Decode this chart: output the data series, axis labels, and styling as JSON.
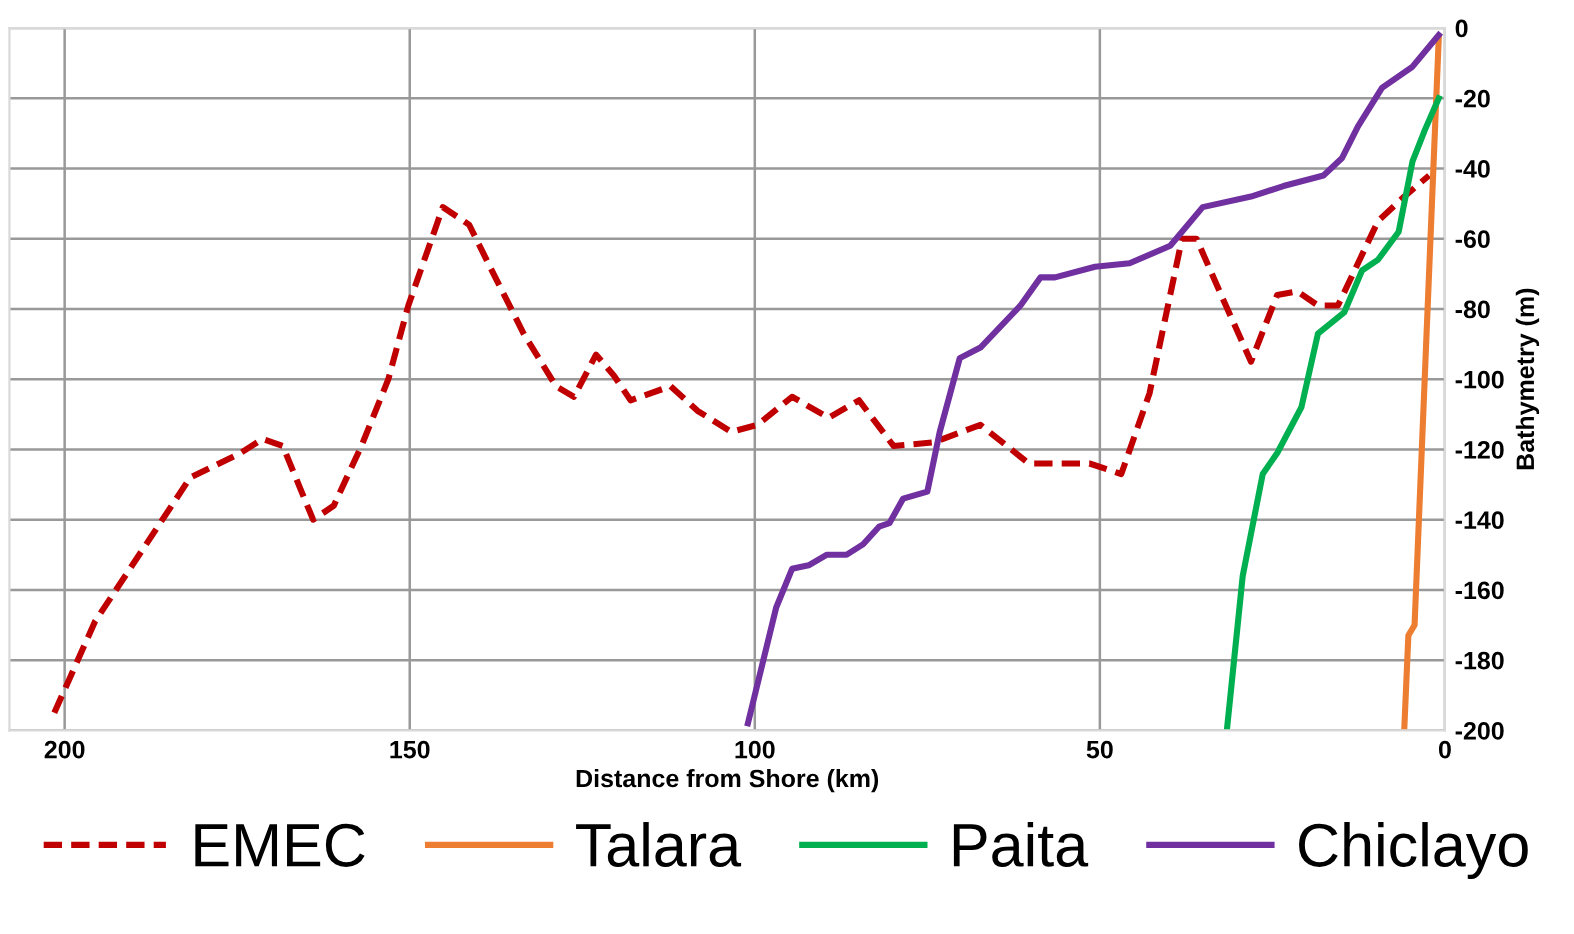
{
  "chart_data": {
    "type": "line",
    "xlabel": "Distance from Shore (km)",
    "ylabel": "Bathymetry (m)",
    "xlim": [
      208,
      0
    ],
    "ylim": [
      -200,
      0
    ],
    "xticks": [
      200,
      150,
      100,
      50,
      0
    ],
    "yticks": [
      0,
      -20,
      -40,
      -60,
      -80,
      -100,
      -120,
      -140,
      -160,
      -180,
      -200
    ],
    "grid": true,
    "legend": "bottom",
    "marker": "none",
    "series": [
      {
        "name": "EMEC",
        "color": "#c00000",
        "line_style": "dashed",
        "x": [
          201.5,
          195.6,
          189.2,
          181.8,
          174.5,
          171.3,
          168.4,
          164,
          161,
          157,
          153.1,
          150.2,
          145.2,
          141.4,
          137.6,
          133.5,
          128.8,
          126.2,
          123,
          120.4,
          118,
          112.2,
          108.3,
          103.4,
          99.6,
          94.6,
          89.3,
          84.9,
          79.9,
          74.1,
          67.3,
          60.3,
          51.5,
          46.9,
          42.8,
          38.1,
          36,
          32.2,
          28.1,
          24.3,
          21.4,
          18.4,
          15.5,
          9.7,
          5.9,
          2.3
        ],
        "values": [
          -195,
          -169,
          -150,
          -128,
          -121,
          -117,
          -119,
          -140,
          -136,
          -119,
          -100,
          -79,
          -51,
          -56,
          -71,
          -87,
          -102,
          -105,
          -93,
          -99,
          -106,
          -102,
          -109,
          -115,
          -113,
          -105,
          -111,
          -106,
          -119,
          -118,
          -113,
          -124,
          -124,
          -127,
          -104,
          -60,
          -60,
          -77,
          -95,
          -76,
          -75,
          -79,
          -79,
          -55,
          -48,
          -42
        ]
      },
      {
        "name": "Talara",
        "color": "#ed7d31",
        "line_style": "solid",
        "x": [
          5.9,
          5.3,
          4.4,
          0.9
        ],
        "values": [
          -200,
          -173,
          -170,
          -3
        ]
      },
      {
        "name": "Paita",
        "color": "#00b050",
        "line_style": "solid",
        "x": [
          31.6,
          29.3,
          26.4,
          24.3,
          20.8,
          18.4,
          14.6,
          12,
          9.7,
          6.7,
          4.7,
          2.9,
          0.9
        ],
        "values": [
          -200,
          -156,
          -127,
          -121,
          -108,
          -87,
          -81,
          -69,
          -66,
          -58,
          -38,
          -29,
          -20
        ]
      },
      {
        "name": "Chiclayo",
        "color": "#7030a0",
        "line_style": "solid",
        "x": [
          101,
          96.9,
          94.6,
          92.2,
          89.6,
          86.7,
          84.3,
          82,
          80.5,
          78.5,
          75,
          73.2,
          70.3,
          67.3,
          61.5,
          58.6,
          56.5,
          50.7,
          45.7,
          39.8,
          35.1,
          28.1,
          23.4,
          17.6,
          14.9,
          12.6,
          9.1,
          4.7,
          0.9
        ],
        "values": [
          -198,
          -165,
          -154,
          -153,
          -150,
          -150,
          -147,
          -142,
          -141,
          -134,
          -132,
          -115,
          -94,
          -91,
          -79,
          -71,
          -71,
          -68,
          -67,
          -62,
          -51,
          -48,
          -45,
          -42,
          -37,
          -28,
          -17,
          -11,
          -2
        ]
      }
    ]
  }
}
